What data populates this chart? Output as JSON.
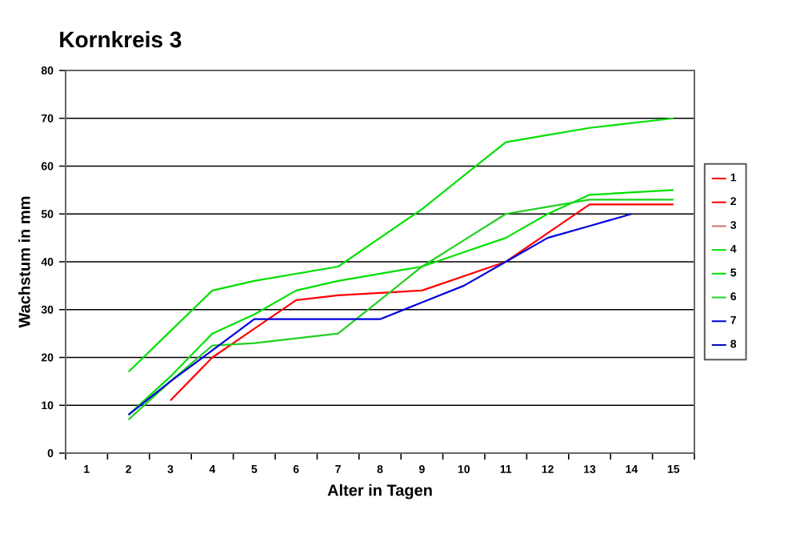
{
  "chart_data": {
    "type": "line",
    "title": "Kornkreis 3",
    "xlabel": "Alter in Tagen",
    "ylabel": "Wachstum in mm",
    "categories": [
      "1",
      "2",
      "3",
      "4",
      "5",
      "6",
      "7",
      "8",
      "9",
      "10",
      "11",
      "12",
      "13",
      "14",
      "15"
    ],
    "series": [
      {
        "name": "1",
        "color": "#ff0000",
        "values": [
          null,
          null,
          11,
          20,
          26,
          32,
          33,
          33.5,
          34,
          37,
          40,
          46,
          52,
          52,
          52
        ]
      },
      {
        "name": "2",
        "color": "#ff0000",
        "values": [
          null,
          null,
          null,
          null,
          null,
          null,
          null,
          null,
          null,
          null,
          null,
          null,
          null,
          null,
          null
        ]
      },
      {
        "name": "3",
        "color": "#d07070",
        "values": [
          null,
          null,
          null,
          null,
          null,
          null,
          null,
          null,
          null,
          null,
          null,
          null,
          null,
          null,
          null
        ]
      },
      {
        "name": "4",
        "color": "#00e000",
        "values": [
          null,
          17,
          25.5,
          34,
          36,
          37.5,
          39,
          45,
          51,
          58,
          65,
          66.5,
          68,
          69,
          70
        ]
      },
      {
        "name": "5",
        "color": "#00e000",
        "values": [
          null,
          8,
          16,
          25,
          29,
          34,
          36,
          37.5,
          39,
          42,
          45,
          50,
          54,
          54.5,
          55
        ]
      },
      {
        "name": "6",
        "color": "#20d020",
        "values": [
          null,
          7,
          15,
          22.5,
          23,
          24,
          25,
          32,
          39,
          44.5,
          50,
          51.5,
          53,
          53,
          53
        ]
      },
      {
        "name": "7",
        "color": "#0000e0",
        "values": [
          null,
          8,
          15,
          21.5,
          28,
          28,
          28,
          28,
          31.5,
          35,
          40,
          45,
          47.5,
          50,
          null
        ]
      },
      {
        "name": "8",
        "color": "#0000c0",
        "values": [
          null,
          null,
          null,
          null,
          null,
          null,
          null,
          null,
          null,
          null,
          null,
          null,
          null,
          null,
          null
        ]
      }
    ],
    "ylim": [
      0,
      80
    ],
    "yticks": [
      0,
      10,
      20,
      30,
      40,
      50,
      60,
      70,
      80
    ],
    "grid": "y",
    "legend": "right",
    "marker": "none",
    "line_style": "solid"
  }
}
